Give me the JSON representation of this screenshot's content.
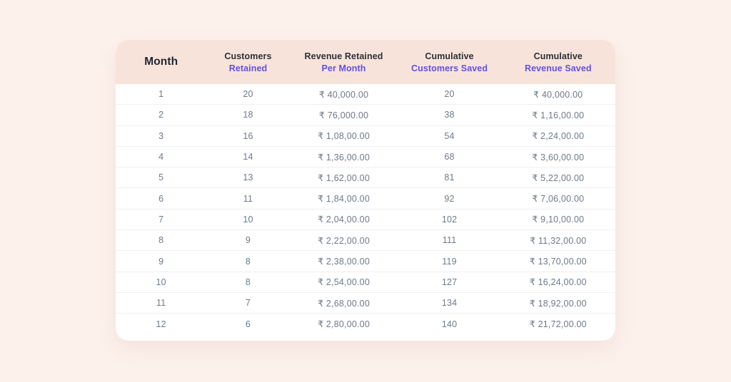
{
  "page": {
    "background_color": "#fdf1ec"
  },
  "colors": {
    "card_background": "#ffffff",
    "header_band": "#f8e3da",
    "accent_purple": "#6152e1",
    "header_text_dark": "#2b313b",
    "body_text": "#6e7a89",
    "row_divider": "#f1eff1"
  },
  "table": {
    "header": {
      "columns": [
        {
          "line1": "Month",
          "line2": ""
        },
        {
          "line1": "Customers",
          "line2": "Retained"
        },
        {
          "line1": "Revenue Retained",
          "line2": "Per Month"
        },
        {
          "line1": "Cumulative",
          "line2": "Customers Saved"
        },
        {
          "line1": "Cumulative",
          "line2": "Revenue Saved"
        }
      ]
    },
    "rows": [
      [
        "1",
        "20",
        "₹ 40,000.00",
        "20",
        "₹ 40,000.00"
      ],
      [
        "2",
        "18",
        "₹ 76,000.00",
        "38",
        "₹ 1,16,00.00"
      ],
      [
        "3",
        "16",
        "₹ 1,08,00.00",
        "54",
        "₹ 2,24,00.00"
      ],
      [
        "4",
        "14",
        "₹ 1,36,00.00",
        "68",
        "₹ 3,60,00.00"
      ],
      [
        "5",
        "13",
        "₹ 1,62,00.00",
        "81",
        "₹ 5,22,00.00"
      ],
      [
        "6",
        "11",
        "₹ 1,84,00.00",
        "92",
        "₹ 7,06,00.00"
      ],
      [
        "7",
        "10",
        "₹ 2,04,00.00",
        "102",
        "₹ 9,10,00.00"
      ],
      [
        "8",
        "9",
        "₹ 2,22,00.00",
        "111",
        "₹ 11,32,00.00"
      ],
      [
        "9",
        "8",
        "₹ 2,38,00.00",
        "119",
        "₹ 13,70,00.00"
      ],
      [
        "10",
        "8",
        "₹ 2,54,00.00",
        "127",
        "₹ 16,24,00.00"
      ],
      [
        "11",
        "7",
        "₹ 2,68,00.00",
        "134",
        "₹ 18,92,00.00"
      ],
      [
        "12",
        "6",
        "₹ 2,80,00.00",
        "140",
        "₹ 21,72,00.00"
      ]
    ]
  },
  "chart_data": {
    "type": "table",
    "title": "",
    "columns": [
      "Month",
      "Customers Retained",
      "Revenue Retained Per Month",
      "Cumulative Customers Saved",
      "Cumulative Revenue Saved"
    ],
    "months": [
      1,
      2,
      3,
      4,
      5,
      6,
      7,
      8,
      9,
      10,
      11,
      12
    ],
    "customers_retained": [
      20,
      18,
      16,
      14,
      13,
      11,
      10,
      9,
      8,
      8,
      7,
      6
    ],
    "revenue_retained_per_month": [
      "₹ 40,000.00",
      "₹ 76,000.00",
      "₹ 1,08,00.00",
      "₹ 1,36,00.00",
      "₹ 1,62,00.00",
      "₹ 1,84,00.00",
      "₹ 2,04,00.00",
      "₹ 2,22,00.00",
      "₹ 2,38,00.00",
      "₹ 2,54,00.00",
      "₹ 2,68,00.00",
      "₹ 2,80,00.00"
    ],
    "cumulative_customers_saved": [
      20,
      38,
      54,
      68,
      81,
      92,
      102,
      111,
      119,
      127,
      134,
      140
    ],
    "cumulative_revenue_saved": [
      "₹ 40,000.00",
      "₹ 1,16,00.00",
      "₹ 2,24,00.00",
      "₹ 3,60,00.00",
      "₹ 5,22,00.00",
      "₹ 7,06,00.00",
      "₹ 9,10,00.00",
      "₹ 11,32,00.00",
      "₹ 13,70,00.00",
      "₹ 16,24,00.00",
      "₹ 18,92,00.00",
      "₹ 21,72,00.00"
    ]
  }
}
